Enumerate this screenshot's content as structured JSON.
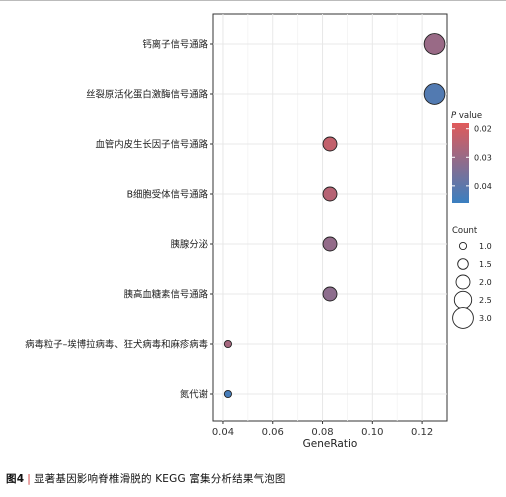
{
  "figure_caption": {
    "label": "图4",
    "separator": "|",
    "text": "显著基因影响脊椎滑脱的 KEGG 富集分析结果气泡图"
  },
  "chart_data": {
    "type": "scatter",
    "xlabel": "GeneRatio",
    "ylabel": "",
    "xlim": [
      0.036,
      0.13
    ],
    "x_ticks": [
      0.04,
      0.06,
      0.08,
      0.1,
      0.12
    ],
    "x_tick_labels": [
      "0.04",
      "0.06",
      "0.08",
      "0.10",
      "0.12"
    ],
    "grid": true,
    "categories": [
      "钙离子信号通路",
      "丝裂原活化蛋白激酶信号通路",
      "血管内皮生长因子信号通路",
      "B细胞受体信号通路",
      "胰腺分泌",
      "胰高血糖素信号通路",
      "病毒粒子–埃博拉病毒、狂犬病毒和麻疹病毒",
      "氮代谢"
    ],
    "points": [
      {
        "category": "钙离子信号通路",
        "gene_ratio": 0.125,
        "count": 3,
        "p_value": 0.03
      },
      {
        "category": "丝裂原活化蛋白激酶信号通路",
        "gene_ratio": 0.125,
        "count": 3,
        "p_value": 0.042
      },
      {
        "category": "血管内皮生长因子信号通路",
        "gene_ratio": 0.083,
        "count": 2,
        "p_value": 0.023
      },
      {
        "category": "B细胞受体信号通路",
        "gene_ratio": 0.083,
        "count": 2,
        "p_value": 0.025
      },
      {
        "category": "胰腺分泌",
        "gene_ratio": 0.083,
        "count": 2,
        "p_value": 0.031
      },
      {
        "category": "胰高血糖素信号通路",
        "gene_ratio": 0.083,
        "count": 2,
        "p_value": 0.032
      },
      {
        "category": "病毒粒子–埃博拉病毒、狂犬病毒和麻疹病毒",
        "gene_ratio": 0.042,
        "count": 1,
        "p_value": 0.028
      },
      {
        "category": "氮代谢",
        "gene_ratio": 0.042,
        "count": 1,
        "p_value": 0.044
      }
    ],
    "color_legend": {
      "title_italic": "P",
      "title_rest": " value",
      "ticks": [
        0.02,
        0.03,
        0.04
      ],
      "tick_labels": [
        "0.02",
        "0.03",
        "0.04"
      ],
      "range": [
        0.018,
        0.046
      ],
      "low_color": "#e05a5a",
      "high_color": "#3a7fc0"
    },
    "size_legend": {
      "title": "Count",
      "values": [
        1.0,
        1.5,
        2.0,
        2.5,
        3.0
      ],
      "labels": [
        "1.0",
        "1.5",
        "2.0",
        "2.5",
        "3.0"
      ]
    },
    "legend_position": "right"
  }
}
